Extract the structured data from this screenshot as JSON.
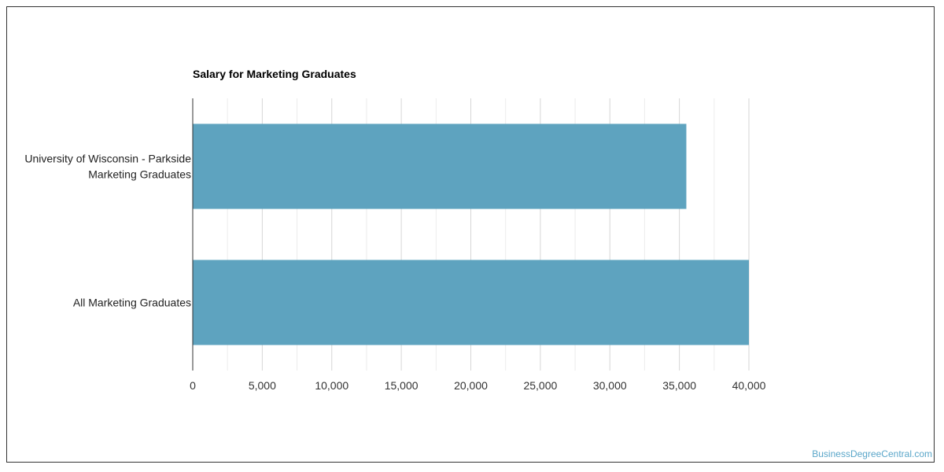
{
  "chart_data": {
    "type": "bar",
    "orientation": "horizontal",
    "title": "Salary for Marketing Graduates",
    "categories": [
      [
        "University of Wisconsin - Parkside",
        "Marketing Graduates"
      ],
      [
        "All Marketing Graduates"
      ]
    ],
    "values": [
      35500,
      40000
    ],
    "xlim": [
      0,
      40000
    ],
    "xticks": [
      0,
      5000,
      10000,
      15000,
      20000,
      25000,
      30000,
      35000,
      40000
    ],
    "xtick_labels": [
      "0",
      "5,000",
      "10,000",
      "15,000",
      "20,000",
      "25,000",
      "30,000",
      "35,000",
      "40,000"
    ],
    "grid": true,
    "bar_color": "#5ea3bf",
    "xlabel": "",
    "ylabel": ""
  },
  "watermark": "BusinessDegreeCentral.com"
}
